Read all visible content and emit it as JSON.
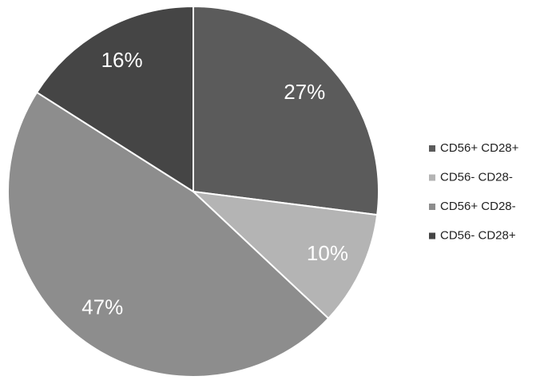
{
  "chart_data": {
    "type": "pie",
    "categories": [
      "CD56+ CD28+",
      "CD56- CD28-",
      "CD56+ CD28-",
      "CD56- CD28+"
    ],
    "values": [
      27,
      10,
      47,
      16
    ],
    "value_labels": [
      "27%",
      "10%",
      "47%",
      "16%"
    ],
    "colors": [
      "#5b5b5b",
      "#b4b4b4",
      "#8d8d8d",
      "#454545"
    ],
    "legend": "right"
  }
}
